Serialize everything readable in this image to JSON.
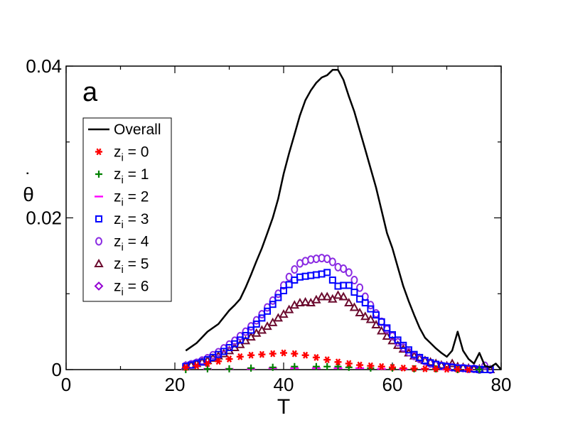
{
  "chart_data": {
    "type": "scatter",
    "panel_label": "a",
    "xlabel": "T",
    "ylabel": "θ",
    "ylabel_mark": "˙",
    "xlim": [
      0,
      80
    ],
    "ylim": [
      0,
      0.04
    ],
    "xticks": [
      0,
      20,
      40,
      60,
      80
    ],
    "xtick_labels": [
      "0",
      "20",
      "40",
      "60",
      "80"
    ],
    "yticks": [
      0,
      0.02,
      0.04
    ],
    "ytick_labels": [
      "0",
      "0.02",
      "0.04"
    ],
    "grid": false,
    "legend_position": "upper-left",
    "series": [
      {
        "name": "Overall",
        "label_main": "Overall",
        "label_sub": "",
        "label_tail": "",
        "marker": "line",
        "color": "#000000",
        "x": [
          22,
          24,
          26,
          28,
          30,
          31,
          32,
          33,
          34,
          35,
          36,
          37,
          38,
          39,
          40,
          41,
          42,
          43,
          44,
          45,
          46,
          47,
          48,
          49,
          50,
          51,
          52,
          53,
          54,
          55,
          56,
          57,
          58,
          59,
          60,
          61,
          62,
          63,
          64,
          65,
          66,
          67,
          68,
          69,
          70,
          71,
          72,
          73,
          74,
          75,
          76,
          77,
          78,
          79,
          80
        ],
        "y": [
          0.0025,
          0.0035,
          0.005,
          0.006,
          0.0078,
          0.0085,
          0.0093,
          0.0108,
          0.0125,
          0.0143,
          0.016,
          0.018,
          0.02,
          0.0225,
          0.0258,
          0.0285,
          0.031,
          0.0335,
          0.0355,
          0.0368,
          0.0378,
          0.0385,
          0.0388,
          0.0395,
          0.0395,
          0.0382,
          0.036,
          0.034,
          0.0315,
          0.029,
          0.0265,
          0.024,
          0.021,
          0.018,
          0.016,
          0.0135,
          0.011,
          0.009,
          0.0072,
          0.0055,
          0.0042,
          0.0035,
          0.0028,
          0.0022,
          0.0017,
          0.0025,
          0.005,
          0.0025,
          0.0014,
          0.0008,
          0.0022,
          0.0005,
          0.0003,
          0.0008,
          0.0
        ]
      },
      {
        "name": "zi = 0",
        "label_main": "z",
        "label_sub": "i",
        "label_tail": " = 0",
        "marker": "star",
        "color": "#ff0000",
        "x": [
          22,
          24,
          26,
          28,
          30,
          32,
          34,
          36,
          38,
          40,
          42,
          44,
          46,
          48,
          50,
          52,
          54,
          56,
          58,
          60,
          62,
          64,
          66,
          68,
          70,
          72,
          74
        ],
        "y": [
          0.0003,
          0.0005,
          0.0008,
          0.0011,
          0.0014,
          0.0017,
          0.0019,
          0.002,
          0.0021,
          0.0022,
          0.0021,
          0.0019,
          0.0016,
          0.0013,
          0.001,
          0.0008,
          0.0006,
          0.0005,
          0.0004,
          0.0003,
          0.0002,
          0.00015,
          0.0001,
          0.0001,
          5e-05,
          5e-05,
          0.0
        ]
      },
      {
        "name": "zi = 1",
        "label_main": "z",
        "label_sub": "i",
        "label_tail": " = 1",
        "marker": "plus",
        "color": "#008000",
        "x": [
          22,
          26,
          30,
          34,
          38,
          42,
          46,
          48,
          50,
          52,
          56,
          60,
          64,
          68,
          72,
          76
        ],
        "y": [
          0.0,
          0.0001,
          0.0001,
          0.0002,
          0.0003,
          0.0004,
          0.0004,
          0.0004,
          0.0004,
          0.0003,
          0.0002,
          0.0002,
          0.0001,
          0.0001,
          0.0,
          0.0
        ]
      },
      {
        "name": "zi = 2",
        "label_main": "z",
        "label_sub": "i",
        "label_tail": " = 2",
        "marker": "dash",
        "color": "#ff00ff",
        "x": [
          22,
          26,
          30,
          34,
          38,
          42,
          46,
          50,
          54,
          58,
          62,
          66,
          70,
          74
        ],
        "y": [
          0.0,
          0.0001,
          0.0001,
          0.0001,
          0.0002,
          0.0002,
          0.0002,
          0.0002,
          0.0002,
          0.0001,
          0.0001,
          0.0001,
          0.0,
          0.0
        ]
      },
      {
        "name": "zi = 3",
        "label_main": "z",
        "label_sub": "i",
        "label_tail": " = 3",
        "marker": "square",
        "color": "#0000ff",
        "x": [
          22,
          23,
          24,
          25,
          26,
          27,
          28,
          29,
          30,
          31,
          32,
          33,
          34,
          35,
          36,
          37,
          38,
          39,
          40,
          41,
          42,
          43,
          44,
          45,
          46,
          47,
          48,
          49,
          50,
          51,
          52,
          53,
          54,
          55,
          56,
          57,
          58,
          59,
          60,
          61,
          62,
          63,
          64,
          65,
          66,
          67,
          68,
          69,
          70,
          71,
          72,
          73,
          74,
          75,
          76,
          77,
          78
        ],
        "y": [
          0.0004,
          0.0006,
          0.0008,
          0.001,
          0.0013,
          0.0016,
          0.002,
          0.0024,
          0.0029,
          0.0034,
          0.0039,
          0.0045,
          0.0052,
          0.006,
          0.0068,
          0.0077,
          0.0086,
          0.0095,
          0.0104,
          0.0112,
          0.0118,
          0.0122,
          0.0123,
          0.0124,
          0.0125,
          0.0126,
          0.0128,
          0.0118,
          0.011,
          0.0111,
          0.0111,
          0.0102,
          0.0093,
          0.0088,
          0.008,
          0.0072,
          0.0063,
          0.0055,
          0.0046,
          0.0039,
          0.0032,
          0.0026,
          0.002,
          0.0016,
          0.0012,
          0.0009,
          0.0007,
          0.0005,
          0.0004,
          0.0003,
          0.0002,
          0.0002,
          0.0001,
          0.0001,
          0.0,
          0.0,
          0.0
        ]
      },
      {
        "name": "zi = 4",
        "label_main": "z",
        "label_sub": "i",
        "label_tail": " = 4",
        "marker": "circle",
        "color": "#8a2be2",
        "x": [
          22,
          23,
          24,
          25,
          26,
          27,
          28,
          29,
          30,
          31,
          32,
          33,
          34,
          35,
          36,
          37,
          38,
          39,
          40,
          41,
          42,
          43,
          44,
          45,
          46,
          47,
          48,
          49,
          50,
          51,
          52,
          53,
          54,
          55,
          56,
          57,
          58,
          59,
          60,
          61,
          62,
          63,
          64,
          65,
          66,
          67,
          68,
          69,
          70,
          71,
          72,
          73,
          74,
          75,
          76,
          77,
          78
        ],
        "y": [
          0.0005,
          0.0007,
          0.0009,
          0.0012,
          0.0015,
          0.0019,
          0.0023,
          0.0028,
          0.0033,
          0.0038,
          0.0044,
          0.005,
          0.0057,
          0.0065,
          0.0073,
          0.0082,
          0.0091,
          0.01,
          0.0111,
          0.0122,
          0.0132,
          0.014,
          0.0143,
          0.0145,
          0.0146,
          0.0147,
          0.0146,
          0.0142,
          0.0135,
          0.0133,
          0.0128,
          0.0118,
          0.0108,
          0.0096,
          0.0085,
          0.0074,
          0.0063,
          0.0053,
          0.0044,
          0.0036,
          0.0029,
          0.0023,
          0.0018,
          0.0014,
          0.0011,
          0.0008,
          0.0006,
          0.0005,
          0.0004,
          0.0003,
          0.0002,
          0.0002,
          0.0001,
          0.0001,
          0.0,
          0.0005,
          0.0
        ]
      },
      {
        "name": "zi = 5",
        "label_main": "z",
        "label_sub": "i",
        "label_tail": " = 5",
        "marker": "triangle",
        "color": "#6b0a2e",
        "x": [
          22,
          23,
          24,
          25,
          26,
          27,
          28,
          29,
          30,
          31,
          32,
          33,
          34,
          35,
          36,
          37,
          38,
          39,
          40,
          41,
          42,
          43,
          44,
          45,
          46,
          47,
          48,
          49,
          50,
          51,
          52,
          53,
          54,
          55,
          56,
          57,
          58,
          59,
          60,
          61,
          62,
          63,
          64,
          65,
          66,
          67,
          68,
          69,
          70,
          71,
          72,
          73,
          74,
          75,
          76,
          77,
          78
        ],
        "y": [
          0.0005,
          0.0006,
          0.0008,
          0.001,
          0.0012,
          0.0015,
          0.0018,
          0.0021,
          0.0025,
          0.0029,
          0.0033,
          0.0038,
          0.0043,
          0.0048,
          0.0052,
          0.0057,
          0.0062,
          0.0068,
          0.0073,
          0.0079,
          0.0085,
          0.0088,
          0.0089,
          0.0088,
          0.0092,
          0.0096,
          0.0096,
          0.0093,
          0.0098,
          0.0096,
          0.0088,
          0.0082,
          0.0075,
          0.007,
          0.0066,
          0.0059,
          0.0051,
          0.0044,
          0.0038,
          0.0032,
          0.0027,
          0.0022,
          0.0018,
          0.0015,
          0.0012,
          0.001,
          0.0008,
          0.0006,
          0.0005,
          0.0008,
          0.0004,
          0.0003,
          0.0002,
          0.0001,
          0.0001,
          0.0,
          0.0
        ]
      },
      {
        "name": "zi = 6",
        "label_main": "z",
        "label_sub": "i",
        "label_tail": " = 6",
        "marker": "diamond",
        "color": "#9400d3",
        "x": [
          22,
          24,
          26,
          28,
          30,
          32,
          34,
          36,
          38,
          40,
          42,
          44,
          46,
          48,
          50,
          52,
          54,
          56,
          58,
          60,
          62,
          64,
          66,
          68,
          70,
          72,
          74,
          76,
          78
        ],
        "y": [
          0.0001,
          0.0002,
          0.0002,
          0.0003,
          0.0004,
          0.0005,
          0.0006,
          0.0007,
          0.0008,
          0.0009,
          0.001,
          0.0011,
          0.0012,
          0.0013,
          0.0013,
          0.0012,
          0.0011,
          0.001,
          0.0009,
          0.0008,
          0.0007,
          0.0006,
          0.0005,
          0.0004,
          0.0003,
          0.0002,
          0.0002,
          0.0001,
          0.0001
        ]
      }
    ]
  }
}
